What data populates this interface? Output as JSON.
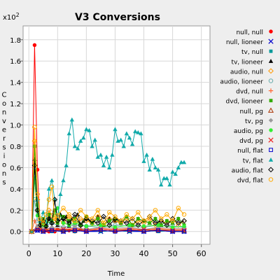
{
  "chart_data": {
    "type": "line",
    "title": "V3 Conversions",
    "xlabel": "Time",
    "ylabel": "Conversions",
    "y_multiplier": "x10",
    "y_multiplier_exp": "2",
    "xlim": [
      -2,
      63
    ],
    "ylim": [
      -0.12,
      1.93
    ],
    "x_ticks": [
      0,
      10,
      20,
      30,
      40,
      50,
      60
    ],
    "y_ticks": [
      0.0,
      0.2,
      0.4,
      0.6,
      0.8,
      1.0,
      1.2,
      1.4,
      1.6,
      1.8
    ],
    "grid": true,
    "legend_position": "right",
    "series": [
      {
        "name": "null, null",
        "color": "#ff0000",
        "marker": "dot",
        "x": [
          1,
          2,
          3,
          4,
          5,
          6,
          7,
          8,
          9,
          10,
          12,
          14,
          16,
          18,
          20,
          25,
          30,
          35,
          40,
          45,
          50,
          54
        ],
        "y": [
          0,
          1.75,
          0.58,
          0.02,
          0,
          0.01,
          0,
          0.01,
          0,
          0.02,
          0,
          0.01,
          0,
          0.02,
          0,
          0.01,
          0,
          0.02,
          0,
          0.01,
          0,
          0
        ]
      },
      {
        "name": "null, lioneer",
        "color": "#0000cc",
        "marker": "x",
        "x": [
          1,
          3,
          5,
          8,
          12,
          16,
          20,
          25,
          30,
          35,
          40,
          45,
          50,
          54
        ],
        "y": [
          0,
          0.01,
          0,
          0.01,
          0,
          0.01,
          0,
          0,
          0.01,
          0,
          0,
          0.01,
          0,
          0
        ]
      },
      {
        "name": "tv, null",
        "color": "#009999",
        "marker": "square",
        "x": [
          1,
          3,
          5,
          8,
          12,
          16,
          20,
          25,
          30,
          35,
          40,
          45,
          50,
          54
        ],
        "y": [
          0,
          0.02,
          0.01,
          0,
          0.01,
          0,
          0.02,
          0,
          0.01,
          0,
          0.02,
          0,
          0.01,
          0
        ]
      },
      {
        "name": "tv, lioneer",
        "color": "#000000",
        "marker": "triangle",
        "x": [
          1,
          2,
          3,
          4,
          5,
          6,
          7,
          8,
          9,
          10,
          11,
          12,
          13,
          14,
          15,
          16,
          17,
          18,
          19,
          20,
          22,
          24,
          26,
          28,
          30,
          32,
          34,
          36,
          38,
          40,
          42,
          44,
          46,
          48,
          50,
          52,
          54
        ],
        "y": [
          0,
          0.68,
          0.2,
          0.05,
          0.1,
          0.04,
          0.12,
          0.08,
          0.2,
          0.06,
          0.16,
          0.1,
          0.14,
          0.05,
          0.12,
          0.08,
          0.16,
          0.06,
          0.1,
          0.12,
          0.08,
          0.14,
          0.06,
          0.12,
          0.1,
          0.08,
          0.14,
          0.06,
          0.12,
          0.1,
          0.08,
          0.12,
          0.06,
          0.1,
          0.08,
          0.12,
          0.06
        ]
      },
      {
        "name": "audio, null",
        "color": "#ff9900",
        "marker": "diamond-open",
        "x": [
          1,
          2,
          3,
          4,
          5,
          6,
          7,
          8,
          9,
          10,
          12,
          14,
          16,
          18,
          20,
          22,
          24,
          26,
          28,
          30,
          32,
          34,
          36,
          38,
          40,
          42,
          44,
          46,
          48,
          50,
          52,
          54
        ],
        "y": [
          0,
          0.85,
          0.3,
          0.1,
          0.05,
          0.1,
          0.2,
          0.15,
          0.1,
          0.12,
          0.08,
          0.14,
          0.06,
          0.12,
          0.1,
          0.08,
          0.14,
          0.06,
          0.12,
          0.1,
          0.08,
          0.12,
          0.06,
          0.1,
          0.08,
          0.12,
          0.06,
          0.1,
          0.08,
          0.12,
          0.06,
          0.1
        ]
      },
      {
        "name": "audio, lioneer",
        "color": "#66aaaa",
        "marker": "circle-open",
        "x": [
          1,
          2,
          3,
          5,
          8,
          12,
          16,
          20,
          25,
          30,
          35,
          40,
          45,
          50,
          54
        ],
        "y": [
          0,
          0.3,
          0.1,
          0.05,
          0.08,
          0.04,
          0.06,
          0.05,
          0.04,
          0.06,
          0.05,
          0.04,
          0.06,
          0.05,
          0.04
        ]
      },
      {
        "name": "dvd, null",
        "color": "#ff6633",
        "marker": "plus",
        "x": [
          1,
          2,
          3,
          5,
          8,
          12,
          16,
          20,
          25,
          30,
          35,
          40,
          45,
          50,
          54
        ],
        "y": [
          0,
          0.1,
          0.04,
          0.02,
          0.03,
          0.02,
          0.03,
          0.02,
          0.03,
          0.02,
          0.03,
          0.02,
          0.03,
          0.02,
          0.02
        ]
      },
      {
        "name": "dvd, lioneer",
        "color": "#33aa00",
        "marker": "square",
        "x": [
          1,
          2,
          3,
          4,
          5,
          6,
          7,
          8,
          9,
          10,
          12,
          14,
          16,
          18,
          20,
          22,
          24,
          26,
          28,
          30,
          32,
          34,
          36,
          38,
          40,
          42,
          44,
          46,
          48,
          50,
          52,
          54
        ],
        "y": [
          0,
          0.8,
          0.25,
          0.08,
          0.12,
          0.06,
          0.16,
          0.1,
          0.2,
          0.08,
          0.14,
          0.1,
          0.12,
          0.06,
          0.14,
          0.08,
          0.12,
          0.06,
          0.1,
          0.12,
          0.08,
          0.14,
          0.06,
          0.12,
          0.1,
          0.08,
          0.12,
          0.06,
          0.1,
          0.08,
          0.12,
          0.06
        ]
      },
      {
        "name": "null, pg",
        "color": "#aa3300",
        "marker": "triangle-open",
        "x": [
          1,
          3,
          5,
          8,
          12,
          16,
          20,
          25,
          30,
          35,
          40,
          45,
          50,
          54
        ],
        "y": [
          0,
          0.03,
          0.01,
          0.02,
          0.01,
          0.02,
          0.01,
          0.02,
          0.01,
          0.02,
          0.01,
          0.02,
          0.01,
          0.01
        ]
      },
      {
        "name": "tv, pg",
        "color": "#999999",
        "marker": "diamond",
        "x": [
          1,
          3,
          5,
          8,
          12,
          16,
          20,
          25,
          30,
          35,
          40,
          45,
          50,
          54
        ],
        "y": [
          0,
          0.05,
          0.02,
          0.04,
          0.03,
          0.04,
          0.02,
          0.04,
          0.03,
          0.04,
          0.02,
          0.04,
          0.03,
          0.03
        ]
      },
      {
        "name": "audio, pg",
        "color": "#33ee33",
        "marker": "dot",
        "x": [
          1,
          2,
          3,
          5,
          8,
          10,
          12,
          14,
          16,
          20,
          25,
          30,
          35,
          40,
          45,
          50,
          54
        ],
        "y": [
          0,
          0.5,
          0.15,
          0.06,
          0.1,
          0.22,
          0.08,
          0.06,
          0.08,
          0.05,
          0.06,
          0.04,
          0.06,
          0.05,
          0.06,
          0.04,
          0.05
        ]
      },
      {
        "name": "dvd, pg",
        "color": "#ee2222",
        "marker": "x",
        "x": [
          1,
          3,
          5,
          8,
          12,
          16,
          20,
          25,
          30,
          35,
          40,
          45,
          50,
          54
        ],
        "y": [
          0,
          0.02,
          0.01,
          0.01,
          0.02,
          0.01,
          0.01,
          0.02,
          0.01,
          0.01,
          0.02,
          0.01,
          0.01,
          0.01
        ]
      },
      {
        "name": "null, flat",
        "color": "#0000cc",
        "marker": "square-open",
        "x": [
          1,
          3,
          5,
          8,
          12,
          16,
          20,
          25,
          30,
          35,
          40,
          45,
          50,
          54
        ],
        "y": [
          0,
          0.01,
          0,
          0.01,
          0,
          0.01,
          0,
          0.01,
          0,
          0.01,
          0,
          0.01,
          0,
          0
        ]
      },
      {
        "name": "tv, flat",
        "color": "#11aaaa",
        "marker": "triangle",
        "x": [
          1,
          2,
          3,
          4,
          5,
          6,
          7,
          8,
          9,
          10,
          11,
          12,
          13,
          14,
          15,
          16,
          17,
          18,
          19,
          20,
          21,
          22,
          23,
          24,
          25,
          26,
          27,
          28,
          29,
          30,
          31,
          32,
          33,
          34,
          35,
          36,
          37,
          38,
          39,
          40,
          41,
          42,
          43,
          44,
          45,
          46,
          47,
          48,
          49,
          50,
          51,
          52,
          53,
          54
        ],
        "y": [
          0,
          0.6,
          0.3,
          0.1,
          0.18,
          0.08,
          0.4,
          0.48,
          0.3,
          0.12,
          0.35,
          0.48,
          0.62,
          0.92,
          1.05,
          0.8,
          0.78,
          0.85,
          0.88,
          0.96,
          0.95,
          0.8,
          0.86,
          0.7,
          0.72,
          0.62,
          0.7,
          0.6,
          0.72,
          0.96,
          0.85,
          0.86,
          0.8,
          0.92,
          0.88,
          0.82,
          0.94,
          0.93,
          0.92,
          0.66,
          0.72,
          0.58,
          0.68,
          0.6,
          0.58,
          0.44,
          0.5,
          0.5,
          0.44,
          0.56,
          0.54,
          0.6,
          0.65,
          0.65
        ]
      },
      {
        "name": "audio, flat",
        "color": "#000000",
        "marker": "diamond-open",
        "x": [
          1,
          2,
          3,
          4,
          5,
          6,
          7,
          8,
          9,
          10,
          12,
          14,
          16,
          18,
          20,
          22,
          24,
          26,
          28,
          30,
          32,
          34,
          36,
          38,
          40,
          42,
          44,
          46,
          48,
          50,
          52,
          54
        ],
        "y": [
          0,
          0.62,
          0.2,
          0.06,
          0.1,
          0.05,
          0.12,
          0.08,
          0.3,
          0.1,
          0.12,
          0.08,
          0.16,
          0.06,
          0.12,
          0.1,
          0.08,
          0.14,
          0.06,
          0.12,
          0.1,
          0.08,
          0.12,
          0.06,
          0.1,
          0.14,
          0.08,
          0.1,
          0.06,
          0.12,
          0.08,
          0.1
        ]
      },
      {
        "name": "dvd, flat",
        "color": "#ffaa00",
        "marker": "circle-open",
        "x": [
          1,
          2,
          3,
          4,
          5,
          6,
          7,
          8,
          9,
          10,
          12,
          14,
          16,
          18,
          20,
          22,
          24,
          26,
          28,
          30,
          32,
          34,
          36,
          38,
          40,
          42,
          44,
          46,
          48,
          50,
          52,
          54
        ],
        "y": [
          0,
          0.98,
          0.35,
          0.12,
          0.08,
          0.16,
          0.3,
          0.42,
          0.12,
          0.15,
          0.22,
          0.16,
          0.1,
          0.2,
          0.14,
          0.12,
          0.2,
          0.08,
          0.18,
          0.14,
          0.1,
          0.16,
          0.12,
          0.18,
          0.1,
          0.14,
          0.2,
          0.12,
          0.16,
          0.1,
          0.22,
          0.16
        ]
      }
    ]
  }
}
